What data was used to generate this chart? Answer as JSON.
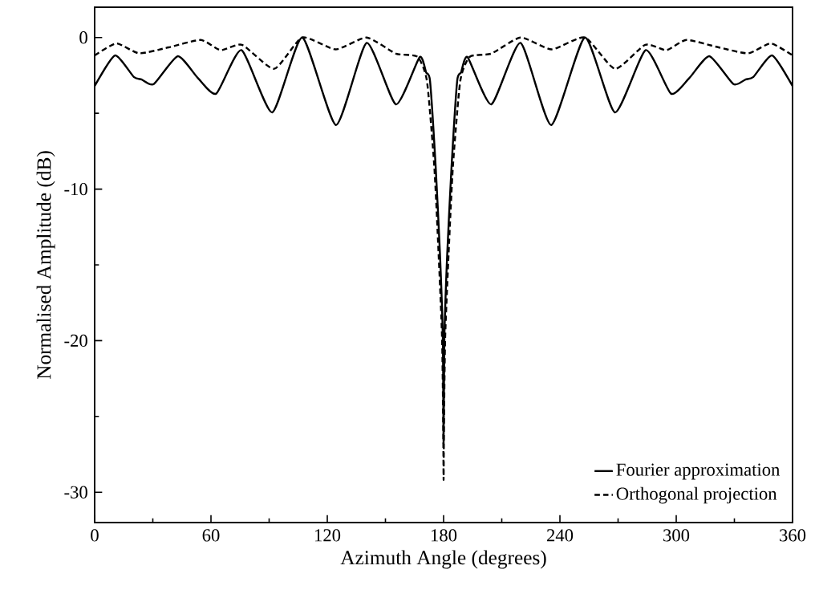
{
  "chart_data": {
    "type": "line",
    "xlabel": "Azimuth Angle (degrees)",
    "ylabel": "Normalised Amplitude (dB)",
    "xlim": [
      0,
      360
    ],
    "ylim": [
      -32,
      2
    ],
    "xticks": [
      0,
      60,
      120,
      180,
      240,
      300,
      360
    ],
    "yticks": [
      -30,
      -20,
      -10,
      0
    ],
    "grid": false,
    "legend": "bottom right",
    "marker": "none",
    "series": [
      {
        "name": "Fourier approximation",
        "color": "#000000",
        "line_style": "solid",
        "x": [
          0,
          10.5,
          20.2,
          24.3,
          30.5,
          42.9,
          53.3,
          62.7,
          75.7,
          91.6,
          107.1,
          124.5,
          140.3,
          155.4,
          167.6,
          171,
          173,
          175.9,
          178.1,
          179.6,
          180,
          180.4,
          181.9,
          184.1,
          187,
          189,
          192.4,
          204.6,
          219.7,
          235.5,
          252.9,
          268.4,
          284.3,
          297.3,
          306.7,
          317.1,
          329.5,
          335.7,
          339.8,
          349.5,
          360
        ],
        "values": [
          -3.2,
          -1.18,
          -2.6,
          -2.77,
          -3.07,
          -1.23,
          -2.68,
          -3.7,
          -0.83,
          -4.94,
          0,
          -5.77,
          -0.35,
          -4.41,
          -1.3,
          -2.3,
          -2.86,
          -8.5,
          -14.2,
          -19.8,
          -26.8,
          -19.8,
          -14.2,
          -8.5,
          -2.86,
          -2.3,
          -1.3,
          -4.41,
          -0.35,
          -5.77,
          0,
          -4.94,
          -0.83,
          -3.7,
          -2.68,
          -1.23,
          -3.07,
          -2.77,
          -2.6,
          -1.18,
          -3.2
        ]
      },
      {
        "name": "Orthogonal projection",
        "color": "#000000",
        "line_style": "dashed",
        "x": [
          0,
          11.2,
          22.9,
          38.1,
          54.7,
          65,
          76,
          92.6,
          107.1,
          124.3,
          140.3,
          155.4,
          166.5,
          171.4,
          175.2,
          177.4,
          179.2,
          179.8,
          180,
          180.2,
          180.8,
          182.6,
          184.8,
          188.6,
          193.5,
          204.6,
          219.7,
          235.7,
          252.9,
          268.4,
          284,
          295,
          305.3,
          321.9,
          337.1,
          348.8,
          360
        ],
        "values": [
          -1.18,
          -0.39,
          -1.04,
          -0.65,
          -0.16,
          -0.83,
          -0.48,
          -2.06,
          0,
          -0.78,
          0,
          -1.06,
          -1.27,
          -2.86,
          -8.5,
          -14.2,
          -19.8,
          -25.5,
          -29.2,
          -25.5,
          -19.8,
          -14.2,
          -8.5,
          -2.86,
          -1.27,
          -1.06,
          0,
          -0.78,
          0,
          -2.06,
          -0.48,
          -0.83,
          -0.16,
          -0.65,
          -1.04,
          -0.39,
          -1.18
        ]
      }
    ]
  }
}
